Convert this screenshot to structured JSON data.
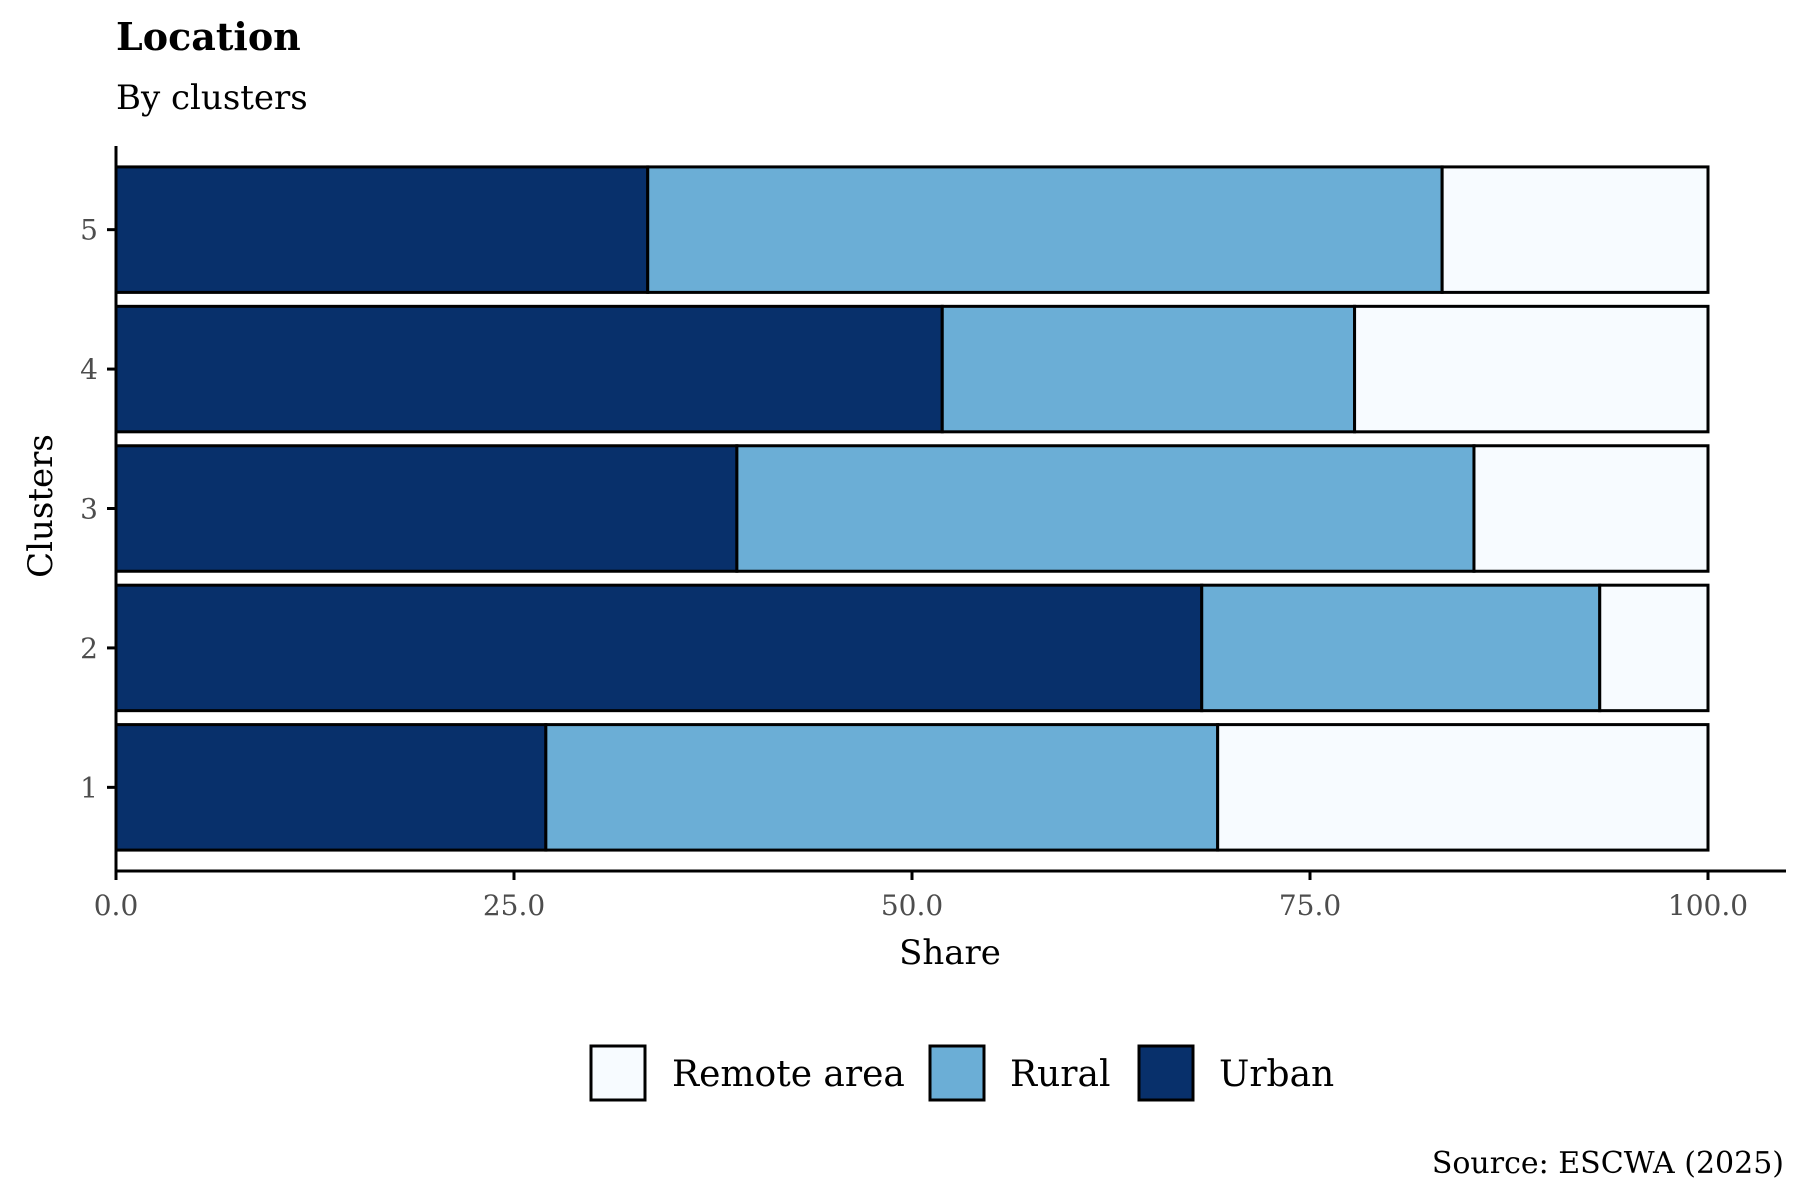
{
  "chart_data": {
    "type": "bar",
    "orientation": "horizontal",
    "stacked": true,
    "title": "Location",
    "subtitle": "By clusters",
    "xlabel": "Share",
    "ylabel": "Clusters",
    "xlim": [
      0,
      100
    ],
    "x_ticks": [
      0,
      25,
      50,
      75,
      100
    ],
    "x_tick_labels": [
      "0.0",
      "25.0",
      "50.0",
      "75.0",
      "100.0"
    ],
    "categories": [
      "1",
      "2",
      "3",
      "4",
      "5"
    ],
    "series": [
      {
        "name": "Urban",
        "color": "#08306b",
        "values": [
          27.0,
          68.2,
          39.0,
          51.9,
          33.4
        ]
      },
      {
        "name": "Rural",
        "color": "#6baed6",
        "values": [
          42.2,
          25.0,
          46.3,
          25.9,
          49.9
        ]
      },
      {
        "name": "Remote area",
        "color": "#f7fbff",
        "values": [
          30.8,
          6.8,
          14.7,
          22.2,
          16.7
        ]
      }
    ],
    "legend": {
      "position": "bottom",
      "order": [
        "Remote area",
        "Rural",
        "Urban"
      ]
    },
    "grid": false,
    "source": "Source: ESCWA (2025)"
  }
}
